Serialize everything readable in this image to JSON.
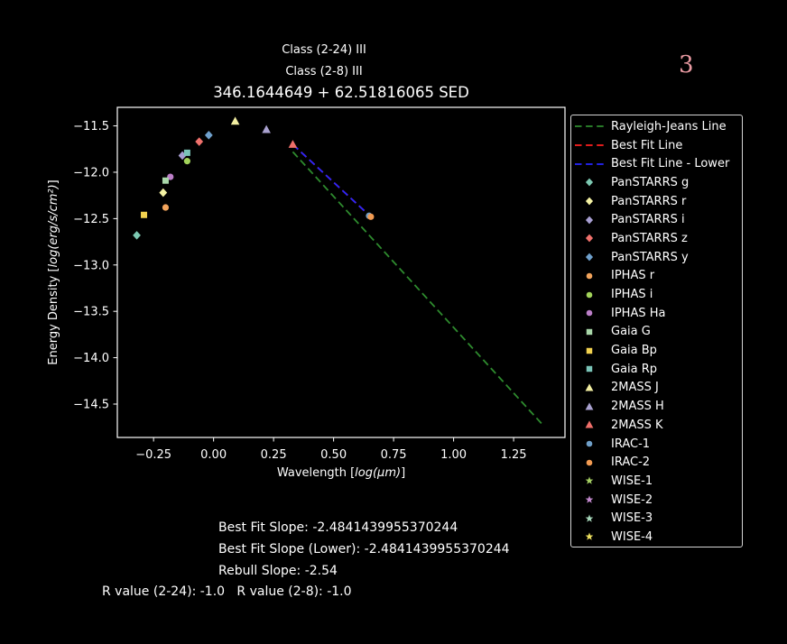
{
  "figure": {
    "class_2_24": "Class (2-24) III",
    "class_2_8": "Class (2-8) III",
    "title": "346.1644649 + 62.51816065 SED",
    "page_number": "3",
    "page_number_color": "#e99aa2",
    "background": "#000000",
    "text_color": "#ffffff"
  },
  "stats": {
    "best_fit_slope": "Best Fit Slope: -2.4841439955370244",
    "best_fit_slope_lower": "Best Fit Slope (Lower): -2.4841439955370244",
    "rebull_slope": "Rebull Slope: -2.54",
    "r_values": "R value (2-24): -1.0   R value (2-8): -1.0"
  },
  "chart_data": {
    "type": "scatter",
    "title": "346.1644649 + 62.51816065 SED",
    "xlabel": "Wavelength [log(μm)]",
    "xlabel_segments": {
      "prefix": "Wavelength [",
      "math": "log(μm)",
      "suffix": "]"
    },
    "ylabel": "Energy Density [log(erg/s/cm²)]",
    "ylabel_segments": {
      "prefix": "Energy Density [",
      "math": "log(erg/s/cm²)",
      "suffix": "]"
    },
    "xlim": [
      -0.401,
      1.464
    ],
    "ylim": [
      -14.86,
      -11.3
    ],
    "xticks": [
      -0.25,
      0.0,
      0.25,
      0.5,
      0.75,
      1.0,
      1.25
    ],
    "yticks": [
      -11.5,
      -12.0,
      -12.5,
      -13.0,
      -13.5,
      -14.0,
      -14.5
    ],
    "grid": false,
    "legend_position": "outside-right",
    "frame_color": "#ffffff",
    "lines": [
      {
        "name": "Rayleigh-Jeans Line",
        "color": "#2e8b2e",
        "style": "dashed",
        "points": [
          [
            0.33,
            -11.78
          ],
          [
            1.37,
            -14.72
          ]
        ]
      },
      {
        "name": "Best Fit Line",
        "color": "#ff2020",
        "style": "dashed",
        "points": [
          [
            0.33,
            -11.7
          ],
          [
            0.655,
            -12.48
          ]
        ]
      },
      {
        "name": "Best Fit Line - Lower",
        "color": "#2626ff",
        "style": "dashed",
        "points": [
          [
            0.33,
            -11.7
          ],
          [
            0.655,
            -12.48
          ]
        ]
      }
    ],
    "series": [
      {
        "name": "PanSTARRS g",
        "marker": "diamond",
        "color": "#7dc9b2",
        "points": [
          [
            -0.32,
            -12.68
          ]
        ]
      },
      {
        "name": "PanSTARRS r",
        "marker": "diamond",
        "color": "#f4f2a4",
        "points": [
          [
            -0.21,
            -12.22
          ]
        ]
      },
      {
        "name": "PanSTARRS i",
        "marker": "diamond",
        "color": "#a89fd2",
        "points": [
          [
            -0.13,
            -11.82
          ]
        ]
      },
      {
        "name": "PanSTARRS z",
        "marker": "diamond",
        "color": "#f0716c",
        "points": [
          [
            -0.06,
            -11.67
          ]
        ]
      },
      {
        "name": "PanSTARRS y",
        "marker": "diamond",
        "color": "#6fa0cc",
        "points": [
          [
            -0.02,
            -11.6
          ]
        ]
      },
      {
        "name": "IPHAS r",
        "marker": "circle",
        "color": "#f2a45c",
        "points": [
          [
            -0.2,
            -12.38
          ]
        ]
      },
      {
        "name": "IPHAS i",
        "marker": "circle",
        "color": "#a2d35a",
        "points": [
          [
            -0.11,
            -11.88
          ]
        ]
      },
      {
        "name": "IPHAS Ha",
        "marker": "circle",
        "color": "#bc7fc8",
        "points": [
          [
            -0.18,
            -12.05
          ]
        ]
      },
      {
        "name": "Gaia G",
        "marker": "square",
        "color": "#a9d7a9",
        "points": [
          [
            -0.2,
            -12.09
          ]
        ]
      },
      {
        "name": "Gaia Bp",
        "marker": "square",
        "color": "#f2d24f",
        "points": [
          [
            -0.29,
            -12.46
          ]
        ]
      },
      {
        "name": "Gaia Rp",
        "marker": "square",
        "color": "#7ac4b8",
        "points": [
          [
            -0.11,
            -11.79
          ]
        ]
      },
      {
        "name": "2MASS J",
        "marker": "triangle",
        "color": "#f3efa2",
        "points": [
          [
            0.09,
            -11.45
          ]
        ]
      },
      {
        "name": "2MASS H",
        "marker": "triangle",
        "color": "#a9a1cf",
        "points": [
          [
            0.22,
            -11.54
          ]
        ]
      },
      {
        "name": "2MASS K",
        "marker": "triangle",
        "color": "#ef6f6a",
        "points": [
          [
            0.33,
            -11.7
          ]
        ]
      },
      {
        "name": "IRAC-1",
        "marker": "circle",
        "color": "#6f9fc8",
        "points": [
          [
            0.648,
            -12.47
          ]
        ]
      },
      {
        "name": "IRAC-2",
        "marker": "circle",
        "color": "#f29b52",
        "points": [
          [
            0.655,
            -12.48
          ]
        ]
      },
      {
        "name": "WISE-1",
        "marker": "star",
        "color": "#a5cf63",
        "points": []
      },
      {
        "name": "WISE-2",
        "marker": "star",
        "color": "#c389ce",
        "points": []
      },
      {
        "name": "WISE-3",
        "marker": "star",
        "color": "#a7d7ba",
        "points": []
      },
      {
        "name": "WISE-4",
        "marker": "star",
        "color": "#ecdf5e",
        "points": []
      }
    ]
  }
}
